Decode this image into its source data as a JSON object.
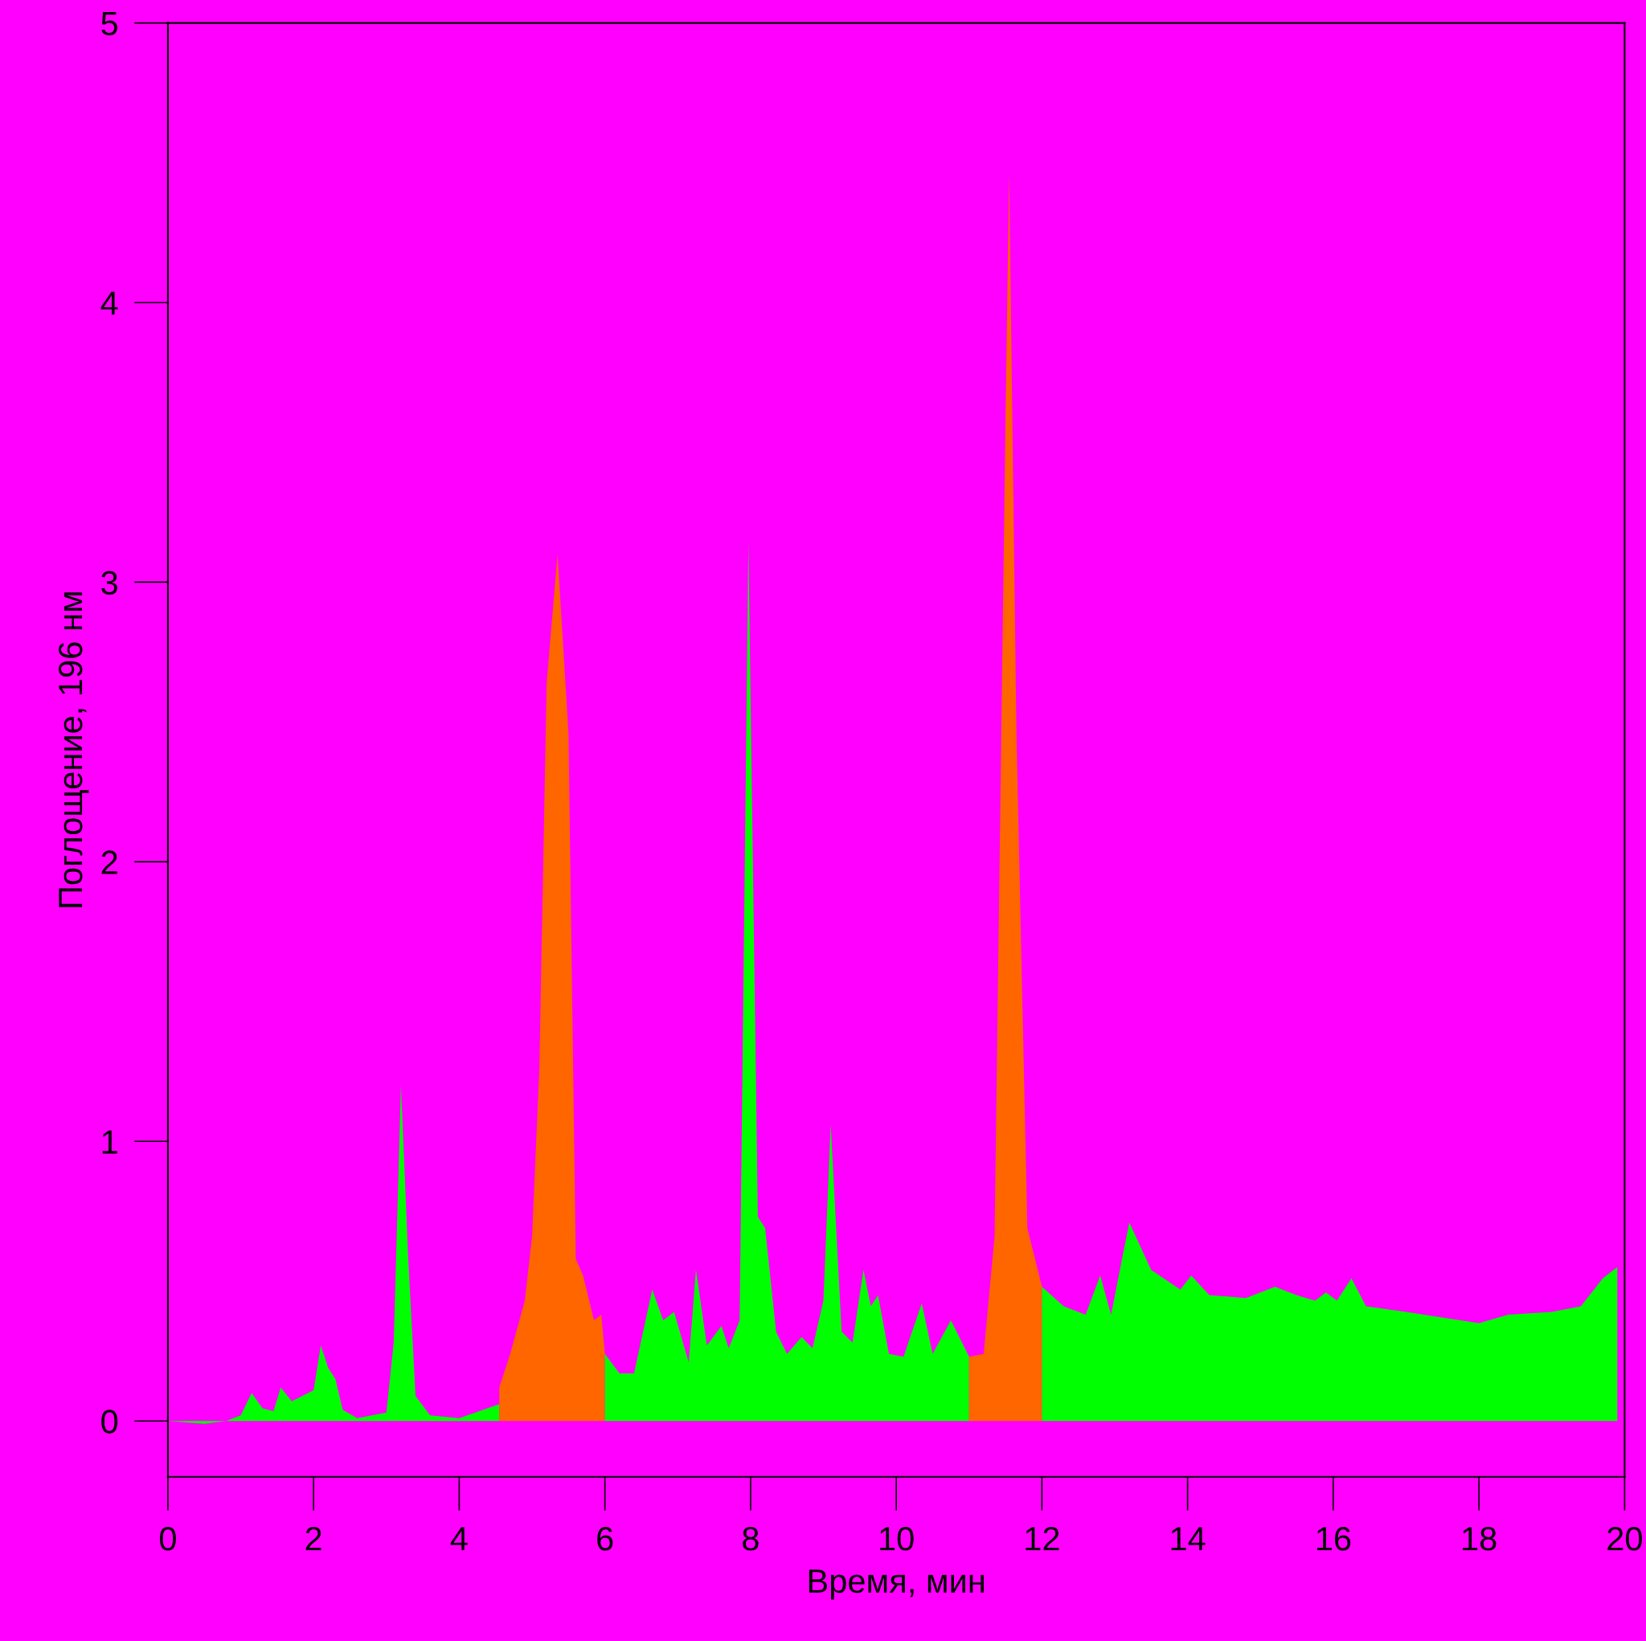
{
  "chart_data": {
    "type": "area",
    "xlabel": "Время, мин",
    "ylabel": "Поглощение, 196 нм",
    "xlim": [
      0,
      20
    ],
    "ylim": [
      -0.2,
      5
    ],
    "xticks": [
      0,
      2,
      4,
      6,
      8,
      10,
      12,
      14,
      16,
      18,
      20
    ],
    "yticks": [
      0,
      1,
      2,
      3,
      4,
      5
    ],
    "grid": false,
    "legend": false,
    "series": [
      {
        "color": "#00ff00",
        "x": [
          0,
          0.5,
          0.8,
          1.0,
          1.15,
          1.3,
          1.45,
          1.55,
          1.7,
          2.0,
          2.1,
          2.2,
          2.3,
          2.4,
          2.6,
          2.8,
          3.0,
          3.1,
          3.2,
          3.3,
          3.4,
          3.6,
          4.0,
          4.55
        ],
        "values": [
          0.0,
          -0.01,
          0.0,
          0.02,
          0.1,
          0.045,
          0.035,
          0.12,
          0.07,
          0.11,
          0.27,
          0.19,
          0.15,
          0.04,
          0.01,
          0.02,
          0.03,
          0.28,
          1.2,
          0.58,
          0.09,
          0.02,
          0.01,
          0.06
        ]
      },
      {
        "color": "#ff6600",
        "x": [
          4.55,
          4.7,
          4.9,
          5.0,
          5.1,
          5.2,
          5.35,
          5.5,
          5.6,
          5.7,
          5.85,
          5.95,
          6.0
        ],
        "values": [
          0.12,
          0.24,
          0.43,
          0.66,
          1.26,
          2.64,
          3.1,
          2.46,
          0.58,
          0.52,
          0.36,
          0.38,
          0.24
        ]
      },
      {
        "color": "#00ff00",
        "x": [
          6.0,
          6.2,
          6.4,
          6.65,
          6.8,
          6.95,
          7.15,
          7.25,
          7.4,
          7.6,
          7.7,
          7.85,
          7.97,
          8.1,
          8.2,
          8.35,
          8.5,
          8.7,
          8.85,
          9.0,
          9.1,
          9.25,
          9.4,
          9.55,
          9.65,
          9.75,
          9.9,
          10.1,
          10.35,
          10.5,
          10.75,
          11.0
        ],
        "values": [
          0.24,
          0.17,
          0.17,
          0.47,
          0.36,
          0.39,
          0.21,
          0.54,
          0.27,
          0.34,
          0.26,
          0.36,
          3.14,
          0.73,
          0.69,
          0.32,
          0.24,
          0.3,
          0.26,
          0.43,
          1.06,
          0.32,
          0.28,
          0.54,
          0.41,
          0.45,
          0.24,
          0.23,
          0.42,
          0.24,
          0.36,
          0.23
        ]
      },
      {
        "color": "#ff6600",
        "x": [
          11.0,
          11.2,
          11.35,
          11.5,
          11.55,
          11.65,
          11.8,
          12.0
        ],
        "values": [
          0.23,
          0.24,
          0.66,
          3.58,
          4.46,
          2.46,
          0.69,
          0.48
        ]
      },
      {
        "color": "#00ff00",
        "x": [
          12.0,
          12.3,
          12.6,
          12.8,
          12.95,
          13.1,
          13.2,
          13.5,
          13.9,
          14.05,
          14.3,
          14.8,
          15.2,
          15.5,
          15.75,
          15.9,
          16.05,
          16.25,
          16.45,
          17.0,
          17.5,
          18.0,
          18.4,
          19.0,
          19.4,
          19.7,
          19.9
        ],
        "values": [
          0.48,
          0.41,
          0.38,
          0.52,
          0.38,
          0.58,
          0.71,
          0.54,
          0.47,
          0.52,
          0.45,
          0.44,
          0.48,
          0.45,
          0.43,
          0.46,
          0.43,
          0.51,
          0.41,
          0.39,
          0.37,
          0.35,
          0.38,
          0.39,
          0.41,
          0.51,
          0.55
        ]
      }
    ]
  }
}
